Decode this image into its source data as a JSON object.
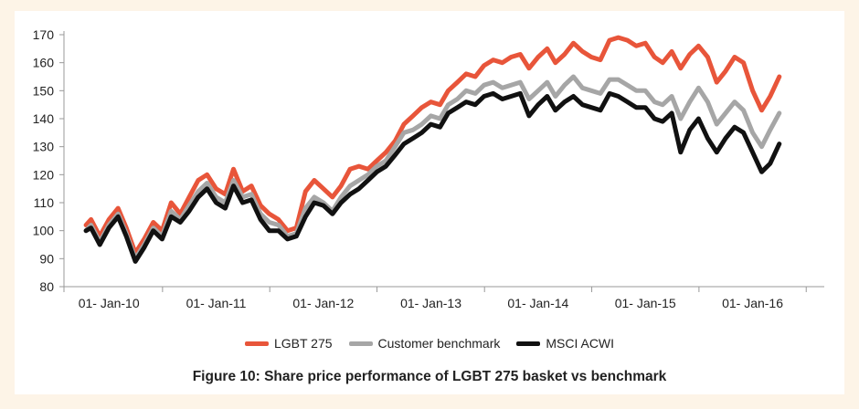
{
  "chart_data": {
    "type": "line",
    "title": "Figure 10: Share price performance of LGBT 275 basket vs benchmark",
    "xlabel": "",
    "ylabel": "",
    "ylim": [
      80,
      170
    ],
    "yticks": [
      80,
      90,
      100,
      110,
      120,
      130,
      140,
      150,
      160,
      170
    ],
    "xlim": [
      "2009-08-01",
      "2016-09-01"
    ],
    "xticks": [
      {
        "date": "2010-01-01",
        "label": "01- Jan-10"
      },
      {
        "date": "2011-01-01",
        "label": "01- Jan-11"
      },
      {
        "date": "2012-01-01",
        "label": "01- Jan-12"
      },
      {
        "date": "2013-01-01",
        "label": "01- Jan-13"
      },
      {
        "date": "2014-01-01",
        "label": "01- Jan-14"
      },
      {
        "date": "2015-01-01",
        "label": "01- Jan-15"
      },
      {
        "date": "2016-01-01",
        "label": "01- Jan-16"
      }
    ],
    "grid": false,
    "legend_position": "bottom",
    "x": [
      "2009-10-15",
      "2009-11-01",
      "2009-12-01",
      "2010-01-01",
      "2010-02-01",
      "2010-03-01",
      "2010-04-01",
      "2010-05-01",
      "2010-06-01",
      "2010-07-01",
      "2010-08-01",
      "2010-09-01",
      "2010-10-01",
      "2010-11-01",
      "2010-12-01",
      "2011-01-01",
      "2011-02-01",
      "2011-03-01",
      "2011-04-01",
      "2011-05-01",
      "2011-06-01",
      "2011-07-01",
      "2011-08-01",
      "2011-09-01",
      "2011-10-01",
      "2011-11-01",
      "2011-12-01",
      "2012-01-01",
      "2012-02-01",
      "2012-03-01",
      "2012-04-01",
      "2012-05-01",
      "2012-06-01",
      "2012-07-01",
      "2012-08-01",
      "2012-09-01",
      "2012-10-01",
      "2012-11-01",
      "2012-12-01",
      "2013-01-01",
      "2013-02-01",
      "2013-03-01",
      "2013-04-01",
      "2013-05-01",
      "2013-06-01",
      "2013-07-01",
      "2013-08-01",
      "2013-09-01",
      "2013-10-01",
      "2013-11-01",
      "2013-12-01",
      "2014-01-01",
      "2014-02-01",
      "2014-03-01",
      "2014-04-01",
      "2014-05-01",
      "2014-06-01",
      "2014-07-01",
      "2014-08-01",
      "2014-09-01",
      "2014-10-01",
      "2014-11-01",
      "2014-12-01",
      "2015-01-01",
      "2015-02-01",
      "2015-03-01",
      "2015-04-01",
      "2015-05-01",
      "2015-06-01",
      "2015-07-01",
      "2015-08-01",
      "2015-09-01",
      "2015-10-01",
      "2015-11-01",
      "2015-12-01",
      "2016-01-01",
      "2016-02-01",
      "2016-03-01",
      "2016-04-01"
    ],
    "series": [
      {
        "name": "LGBT 275",
        "color": "#e8553a",
        "values": [
          102,
          104,
          98,
          104,
          108,
          101,
          92,
          97,
          103,
          100,
          110,
          106,
          112,
          118,
          120,
          115,
          113,
          122,
          114,
          116,
          109,
          106,
          104,
          100,
          101,
          114,
          118,
          115,
          112,
          116,
          122,
          123,
          122,
          125,
          128,
          132,
          138,
          141,
          144,
          146,
          145,
          150,
          153,
          156,
          155,
          159,
          161,
          160,
          162,
          163,
          158,
          162,
          165,
          160,
          163,
          167,
          164,
          162,
          161,
          168,
          169,
          168,
          166,
          167,
          162,
          160,
          164,
          158,
          163,
          166,
          162,
          153,
          157,
          162,
          160,
          150,
          143,
          148,
          155
        ]
      },
      {
        "name": "Customer benchmark",
        "color": "#a6a6a6",
        "values": [
          100,
          102,
          96,
          102,
          106,
          99,
          90,
          95,
          101,
          98,
          107,
          104,
          109,
          114,
          117,
          112,
          110,
          118,
          112,
          113,
          106,
          103,
          102,
          98,
          99,
          108,
          112,
          110,
          107,
          112,
          116,
          118,
          120,
          123,
          125,
          130,
          135,
          136,
          138,
          141,
          140,
          145,
          147,
          150,
          149,
          152,
          153,
          151,
          152,
          153,
          147,
          150,
          153,
          148,
          152,
          155,
          151,
          150,
          149,
          154,
          154,
          152,
          150,
          150,
          146,
          145,
          148,
          140,
          146,
          151,
          146,
          138,
          142,
          146,
          143,
          135,
          130,
          136,
          142
        ]
      },
      {
        "name": "MSCI ACWI",
        "color": "#111111",
        "values": [
          100,
          101,
          95,
          101,
          105,
          98,
          89,
          94,
          100,
          97,
          105,
          103,
          107,
          112,
          115,
          110,
          108,
          116,
          110,
          111,
          104,
          100,
          100,
          97,
          98,
          105,
          110,
          109,
          106,
          110,
          113,
          115,
          118,
          121,
          123,
          127,
          131,
          133,
          135,
          138,
          137,
          142,
          144,
          146,
          145,
          148,
          149,
          147,
          148,
          149,
          141,
          145,
          148,
          143,
          146,
          148,
          145,
          144,
          143,
          149,
          148,
          146,
          144,
          144,
          140,
          139,
          142,
          128,
          136,
          140,
          133,
          128,
          133,
          137,
          135,
          128,
          121,
          124,
          131
        ]
      }
    ]
  }
}
